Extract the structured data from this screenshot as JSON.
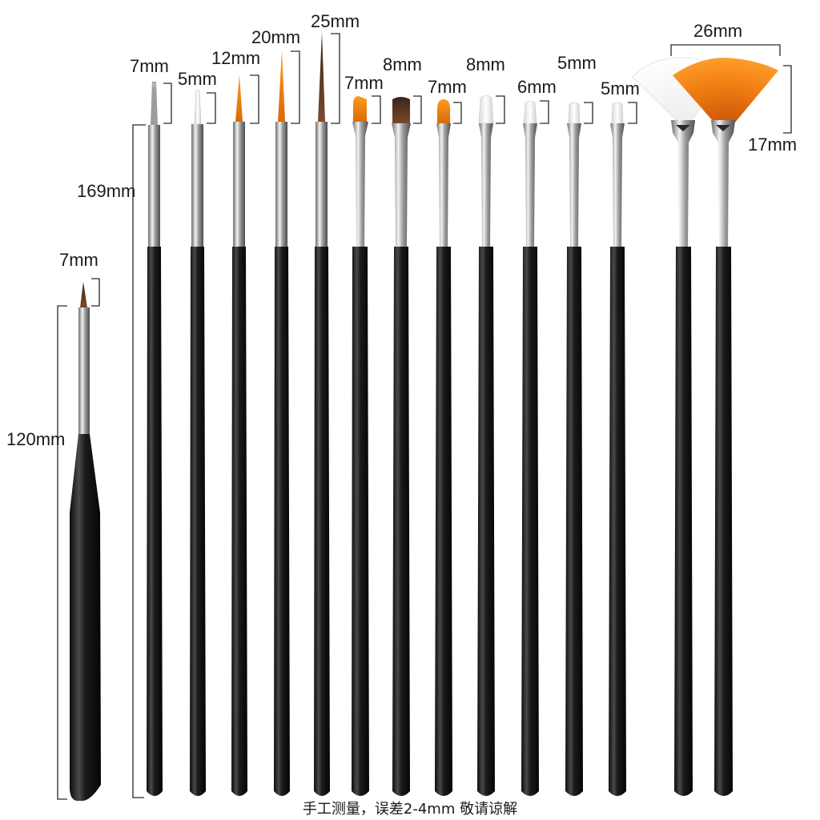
{
  "labels": {
    "short_tip": "7mm",
    "short_body": "120mm",
    "long_body": "169mm",
    "b1": "7mm",
    "b2": "5mm",
    "b3": "12mm",
    "b4": "20mm",
    "b5": "25mm",
    "b6": "7mm",
    "b7": "8mm",
    "b8": "7mm",
    "b9": "8mm",
    "b10": "6mm",
    "b11": "5mm",
    "b12": "5mm",
    "fan_width": "26mm",
    "fan_height": "17mm"
  },
  "footer_note": "手工测量，误差2-4mm 敬请谅解",
  "colors": {
    "background": "#ffffff",
    "handle": "#1c1c1c",
    "ferrule": "#c9c9c9",
    "bristle_orange": "#f28c0f",
    "bristle_brown": "#6b3a1c",
    "bristle_white": "#f4f4f4",
    "bristle_gray": "#a9a9a9"
  },
  "brushes": [
    {
      "name": "liner-7mm-gray",
      "bristle": "point",
      "color": "gray"
    },
    {
      "name": "liner-5mm-white",
      "bristle": "point",
      "color": "white"
    },
    {
      "name": "liner-12mm-orange",
      "bristle": "point",
      "color": "orange"
    },
    {
      "name": "liner-20mm-orange",
      "bristle": "point",
      "color": "orange"
    },
    {
      "name": "liner-25mm-brown",
      "bristle": "point",
      "color": "brown"
    },
    {
      "name": "angled-7mm-orange",
      "bristle": "flat",
      "color": "orange"
    },
    {
      "name": "flat-8mm-brown",
      "bristle": "flat",
      "color": "brown"
    },
    {
      "name": "round-7mm-orange",
      "bristle": "round",
      "color": "orange"
    },
    {
      "name": "flat-8mm-white",
      "bristle": "flat",
      "color": "white"
    },
    {
      "name": "flat-6mm-white",
      "bristle": "flat",
      "color": "white"
    },
    {
      "name": "flat-5mm-white",
      "bristle": "flat",
      "color": "white"
    },
    {
      "name": "flat-5mm-white-b",
      "bristle": "flat",
      "color": "white"
    },
    {
      "name": "fan-white",
      "bristle": "fan",
      "color": "white"
    },
    {
      "name": "fan-orange",
      "bristle": "fan",
      "color": "orange"
    }
  ]
}
